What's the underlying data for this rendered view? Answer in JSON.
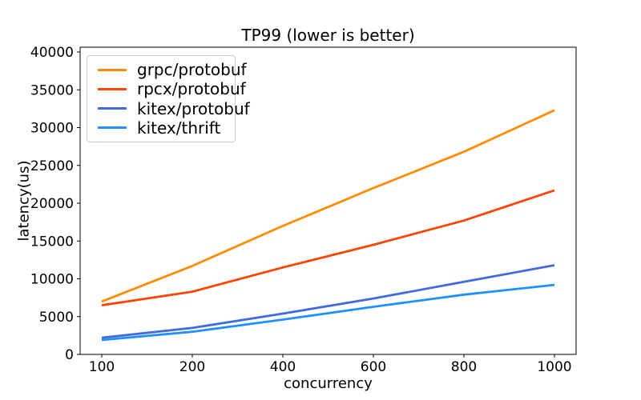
{
  "figure": {
    "background": "#ffffff",
    "text_color": "#000000",
    "spine_color": "#000000"
  },
  "chart_data": {
    "type": "line",
    "title": "TP99 (lower is better)",
    "xlabel": "concurrency",
    "ylabel": "latency(us)",
    "x_scale": "categorical",
    "categories": [
      "100",
      "200",
      "400",
      "600",
      "800",
      "1000"
    ],
    "yticks": [
      0,
      5000,
      10000,
      15000,
      20000,
      25000,
      30000,
      35000,
      40000
    ],
    "ylim": [
      0,
      40635
    ],
    "grid": false,
    "legend_position": "upper left",
    "series": [
      {
        "name": "grpc/protobuf",
        "color": "#ff8c00",
        "values": [
          7000,
          11700,
          17000,
          22000,
          26800,
          32300
        ]
      },
      {
        "name": "rpcx/protobuf",
        "color": "#ff4500",
        "values": [
          6500,
          8300,
          11500,
          14500,
          17700,
          21700
        ]
      },
      {
        "name": "kitex/protobuf",
        "color": "#4169e1",
        "values": [
          2200,
          3500,
          5400,
          7400,
          9600,
          11800
        ]
      },
      {
        "name": "kitex/thrift",
        "color": "#1e90ff",
        "values": [
          1900,
          3000,
          4600,
          6300,
          7900,
          9200
        ]
      }
    ]
  }
}
